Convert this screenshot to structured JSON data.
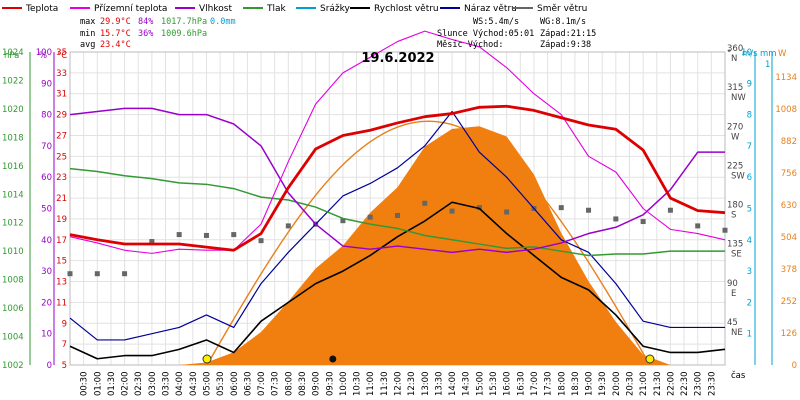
{
  "chart_data": {
    "type": "line",
    "title": "19.6.2022",
    "legend": [
      {
        "label": "Teplota",
        "color": "#dd0000"
      },
      {
        "label": "Přízemní teplota",
        "color": "#e000e0"
      },
      {
        "label": "Vlhkost",
        "color": "#9900cc"
      },
      {
        "label": "Tlak",
        "color": "#339933"
      },
      {
        "label": "Srážky",
        "color": "#00a0d0"
      },
      {
        "label": "Rychlost větru",
        "color": "#000000"
      },
      {
        "label": "Náraz větru",
        "color": "#000099"
      },
      {
        "label": "Směr větru",
        "color": "#666666"
      }
    ],
    "stats": {
      "max_label": "max",
      "max_temp": "29.9°C",
      "max_hum": "84%",
      "max_press": "1017.7hPa",
      "max_rain": "0.0mm",
      "min_label": "min",
      "min_temp": "15.7°C",
      "min_hum": "36%",
      "min_press": "1009.6hPa",
      "avg_label": "avg",
      "avg_temp": "23.4°C",
      "ws": "WS:5.4m/s",
      "wg": "WG:8.1m/s",
      "sun": "Slunce Východ:05:01",
      "sunset": "Západ:21:15",
      "moon": "Měsíc  Východ:",
      "moonset": "Západ:9:38"
    },
    "axes": {
      "hpa_label": "hPa",
      "hpa_ticks": [
        "1024",
        "1022",
        "1020",
        "1018",
        "1016",
        "1014",
        "1012",
        "1010",
        "1008",
        "1006",
        "1004",
        "1002"
      ],
      "hum_label": "%",
      "hum_ticks": [
        "100",
        "90",
        "80",
        "70",
        "60",
        "50",
        "40",
        "30",
        "20",
        "10",
        "0"
      ],
      "temp_label": "°C",
      "temp_ticks": [
        "35",
        "33",
        "31",
        "29",
        "27",
        "25",
        "23",
        "21",
        "19",
        "17",
        "15",
        "13",
        "11",
        "9",
        "7",
        "5"
      ],
      "dir_label": "°",
      "dir_ticks": [
        [
          "360",
          "N"
        ],
        [
          "315",
          "NW"
        ],
        [
          "270",
          "W"
        ],
        [
          "225",
          "SW"
        ],
        [
          "180",
          "S"
        ],
        [
          "135",
          "SE"
        ],
        [
          "90",
          "E"
        ],
        [
          "45",
          "NE"
        ]
      ],
      "ms_label": "m/s",
      "ms_ticks": [
        "10",
        "9",
        "8",
        "7",
        "6",
        "5",
        "4",
        "3",
        "2",
        "1"
      ],
      "mm_label": "mm",
      "mm_top": "1",
      "w_label": "W",
      "w_ticks": [
        "1134",
        "1008",
        "882",
        "756",
        "630",
        "504",
        "378",
        "252",
        "126",
        "0"
      ],
      "time_label": "čas",
      "time_ticks": [
        "00:30",
        "01:00",
        "01:30",
        "02:00",
        "02:30",
        "03:00",
        "03:30",
        "04:00",
        "04:30",
        "05:00",
        "05:30",
        "06:00",
        "06:30",
        "07:00",
        "07:30",
        "08:00",
        "08:30",
        "09:00",
        "09:30",
        "10:00",
        "10:30",
        "11:00",
        "11:30",
        "12:00",
        "12:30",
        "13:00",
        "13:30",
        "14:00",
        "14:30",
        "15:00",
        "15:30",
        "16:00",
        "16:30",
        "17:00",
        "17:30",
        "18:00",
        "18:30",
        "19:00",
        "19:30",
        "20:00",
        "20:30",
        "21:00",
        "21:30",
        "22:00",
        "22:30",
        "23:00",
        "23:30"
      ]
    },
    "series": {
      "x_hours": [
        0,
        1,
        2,
        3,
        4,
        5,
        6,
        7,
        8,
        9,
        10,
        11,
        12,
        13,
        14,
        15,
        16,
        17,
        18,
        19,
        20,
        21,
        22,
        23,
        24
      ],
      "temperature": [
        17.5,
        17.0,
        16.6,
        16.6,
        16.6,
        16.3,
        16.0,
        17.6,
        22.0,
        25.7,
        27.0,
        27.5,
        28.2,
        28.8,
        29.1,
        29.7,
        29.8,
        29.4,
        28.7,
        28.0,
        27.6,
        25.6,
        21.0,
        19.8,
        19.6
      ],
      "ground_temp": [
        17.3,
        16.7,
        16.0,
        15.7,
        16.1,
        16.0,
        16.0,
        18.5,
        24.5,
        30.0,
        33.0,
        34.5,
        36.0,
        37.0,
        36.2,
        35.5,
        33.5,
        31.0,
        29.0,
        25.0,
        23.5,
        20.0,
        18.0,
        17.6,
        17.0
      ],
      "humidity": [
        80,
        81,
        82,
        82,
        80,
        80,
        77,
        70,
        55,
        45,
        38,
        37,
        38,
        37,
        36,
        37,
        36,
        37,
        39,
        42,
        44,
        48,
        56,
        68,
        68
      ],
      "pressure": [
        1015.8,
        1015.6,
        1015.3,
        1015.1,
        1014.8,
        1014.7,
        1014.4,
        1013.8,
        1013.6,
        1013.1,
        1012.3,
        1011.9,
        1011.6,
        1011.1,
        1010.8,
        1010.5,
        1010.2,
        1010.3,
        1010.0,
        1009.7,
        1009.8,
        1009.8,
        1010.0,
        1010.0,
        1010.0
      ],
      "solar_w": [
        0,
        0,
        0,
        0,
        0,
        10,
        50,
        130,
        250,
        380,
        470,
        600,
        700,
        860,
        930,
        940,
        900,
        750,
        520,
        330,
        170,
        40,
        0,
        0,
        0
      ],
      "wind_speed": [
        0.6,
        0.2,
        0.3,
        0.3,
        0.5,
        0.8,
        0.4,
        1.4,
        2.0,
        2.6,
        3.0,
        3.5,
        4.1,
        4.6,
        5.2,
        5.0,
        4.2,
        3.5,
        2.8,
        2.4,
        1.6,
        0.6,
        0.4,
        0.4,
        0.5
      ],
      "wind_gust": [
        1.5,
        0.8,
        0.8,
        1.0,
        1.2,
        1.6,
        1.2,
        2.6,
        3.6,
        4.5,
        5.4,
        5.8,
        6.3,
        7.0,
        8.1,
        6.8,
        6.0,
        5.0,
        4.0,
        3.6,
        2.6,
        1.4,
        1.2,
        1.2,
        1.2
      ],
      "wind_dir": [
        105,
        105,
        105,
        142,
        150,
        149,
        150,
        143,
        160,
        162,
        166,
        170,
        172,
        186,
        177,
        181,
        176,
        180,
        181,
        178,
        168,
        165,
        178,
        160,
        155
      ],
      "sunrise_h": 5.02,
      "sunset_h": 21.25,
      "moonset_h": 9.63
    }
  }
}
